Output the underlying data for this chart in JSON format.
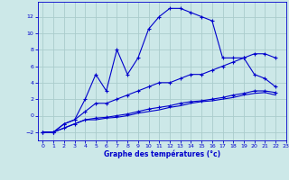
{
  "bg_color": "#cce8e8",
  "grid_color": "#aacccc",
  "line_color": "#0000cc",
  "xlabel": "Graphe des températures (°c)",
  "xlim": [
    -0.5,
    23
  ],
  "ylim": [
    -3,
    13.8
  ],
  "yticks": [
    -2,
    0,
    2,
    4,
    6,
    8,
    10,
    12
  ],
  "xticks": [
    0,
    1,
    2,
    3,
    4,
    5,
    6,
    7,
    8,
    9,
    10,
    11,
    12,
    13,
    14,
    15,
    16,
    17,
    18,
    19,
    20,
    21,
    22,
    23
  ],
  "curve1_x": [
    0,
    1,
    2,
    3,
    4,
    5,
    6,
    7,
    8,
    9,
    10,
    11,
    12,
    13,
    14,
    15,
    16,
    17,
    18,
    19,
    20,
    21,
    22
  ],
  "curve1_y": [
    -2,
    -2,
    -1,
    -0.5,
    2,
    5,
    3,
    8,
    5,
    7,
    10.5,
    12,
    13,
    13,
    12.5,
    12,
    11.5,
    7,
    7,
    7,
    5,
    4.5,
    3.5
  ],
  "curve2_x": [
    0,
    1,
    2,
    3,
    4,
    5,
    6,
    7,
    8,
    9,
    10,
    11,
    12,
    13,
    14,
    15,
    16,
    17,
    18,
    19,
    20,
    21,
    22
  ],
  "curve2_y": [
    -2,
    -2,
    -1,
    -0.5,
    0.5,
    1.5,
    1.5,
    2,
    2.5,
    3,
    3.5,
    4,
    4,
    4.5,
    5,
    5,
    5.5,
    6,
    6.5,
    7,
    7.5,
    7.5,
    7
  ],
  "curve3_x": [
    0,
    1,
    2,
    3,
    4,
    5,
    6,
    7,
    8,
    9,
    10,
    11,
    12,
    13,
    14,
    15,
    16,
    17,
    18,
    19,
    20,
    21,
    22
  ],
  "curve3_y": [
    -2,
    -2,
    -1.5,
    -1,
    -0.5,
    -0.3,
    -0.2,
    0,
    0.2,
    0.5,
    0.8,
    1,
    1.2,
    1.5,
    1.7,
    1.8,
    2,
    2.2,
    2.5,
    2.7,
    3,
    3,
    2.8
  ],
  "curve4_x": [
    0,
    1,
    2,
    3,
    4,
    5,
    6,
    7,
    8,
    9,
    10,
    11,
    12,
    13,
    14,
    15,
    16,
    17,
    18,
    19,
    20,
    21,
    22
  ],
  "curve4_y": [
    -2,
    -2,
    -1.5,
    -1,
    -0.5,
    -0.5,
    -0.3,
    -0.2,
    0,
    0.3,
    0.5,
    0.7,
    1,
    1.2,
    1.5,
    1.7,
    1.8,
    2,
    2.2,
    2.5,
    2.7,
    2.8,
    2.5
  ]
}
